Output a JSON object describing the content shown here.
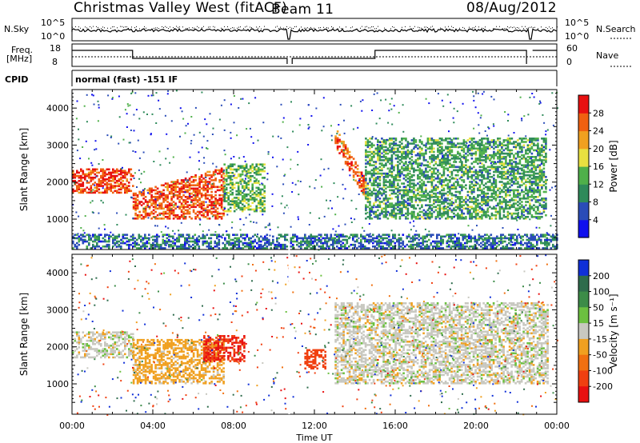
{
  "header": {
    "radar": "Christmas Valley West (fitACF)",
    "beam": "Beam 11",
    "date": "08/Aug/2012"
  },
  "param_labels": {
    "nsky": "N.Sky",
    "nsky_ticks": [
      "10^5",
      "10^0"
    ],
    "nsearch": "N.Search",
    "nsearch_ticks": [
      "10^5",
      "10^0"
    ],
    "freq": "Freq.",
    "freq_unit": "[MHz]",
    "freq_ticks": [
      "18",
      "8"
    ],
    "nave": "Nave",
    "nave_ticks": [
      "60",
      "0"
    ],
    "cpid": "CPID",
    "cpid_value": "normal (fast) -151 IF"
  },
  "axes": {
    "ylabel": "Slant Range [km]",
    "xlabel": "Time UT",
    "x_ticks": [
      "00:00",
      "04:00",
      "08:00",
      "12:00",
      "16:00",
      "20:00",
      "00:00"
    ],
    "y_ticks": [
      "1000",
      "2000",
      "3000",
      "4000"
    ]
  },
  "colorbars": {
    "power": {
      "label": "Power [dB]",
      "ticks": [
        "4",
        "8",
        "12",
        "16",
        "20",
        "24",
        "28"
      ],
      "colors": [
        "#1010ee",
        "#2a4cb8",
        "#2e8a5a",
        "#4fb04a",
        "#e8e040",
        "#f0a020",
        "#f06010",
        "#e81010"
      ]
    },
    "velocity": {
      "label": "Velocity [m s⁻¹]",
      "ticks": [
        "200",
        "100",
        "50",
        "15",
        "-15",
        "-50",
        "-100",
        "-200"
      ],
      "colors": [
        "#1030d8",
        "#2e6c4c",
        "#3c8c48",
        "#6cc040",
        "#c8c8c0",
        "#f0a020",
        "#f07010",
        "#f04010",
        "#e81010"
      ]
    }
  },
  "chart_data": [
    {
      "type": "heatmap",
      "title": "Power",
      "x_range_hours": [
        0,
        24
      ],
      "y_range_km": [
        180,
        4500
      ],
      "value_range_db": [
        0,
        30
      ],
      "colorbar": "Power [dB]",
      "echo_regions": [
        {
          "t": [
            0,
            3
          ],
          "range_km": [
            1700,
            2350
          ],
          "power_db": 28
        },
        {
          "t": [
            3,
            7.5
          ],
          "range_km": [
            1000,
            2200
          ],
          "power_db": 27
        },
        {
          "t": [
            7.5,
            9.5
          ],
          "range_km": [
            1200,
            2500
          ],
          "power_db": 14
        },
        {
          "t": [
            13,
            14.5
          ],
          "range_km": [
            1600,
            3200
          ],
          "power_db": 26
        },
        {
          "t": [
            14.5,
            23.5
          ],
          "range_km": [
            1000,
            3200
          ],
          "power_db": 12
        },
        {
          "t": [
            0,
            24
          ],
          "range_km": [
            200,
            600
          ],
          "power_db": 8
        }
      ]
    },
    {
      "type": "heatmap",
      "title": "Velocity",
      "x_range_hours": [
        0,
        24
      ],
      "y_range_km": [
        180,
        4500
      ],
      "value_range_ms": [
        -250,
        250
      ],
      "colorbar": "Velocity [m s^-1]",
      "echo_regions": [
        {
          "t": [
            0,
            3
          ],
          "range_km": [
            1700,
            2400
          ],
          "velocity_ms": 0
        },
        {
          "t": [
            3,
            7.5
          ],
          "range_km": [
            1000,
            2200
          ],
          "velocity_ms": -30
        },
        {
          "t": [
            6.5,
            8.5
          ],
          "range_km": [
            1600,
            2300
          ],
          "velocity_ms": -200
        },
        {
          "t": [
            11.5,
            12.5
          ],
          "range_km": [
            1400,
            1900
          ],
          "velocity_ms": -120
        },
        {
          "t": [
            13,
            23.5
          ],
          "range_km": [
            1000,
            3200
          ],
          "velocity_ms": 0
        }
      ]
    }
  ]
}
